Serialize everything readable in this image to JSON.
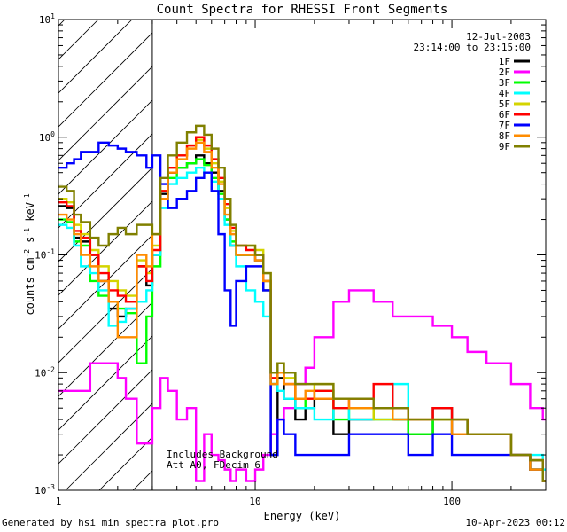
{
  "footer": {
    "left": "Generated by hsi_min_spectra_plot.pro",
    "right": "10-Apr-2023 00:12"
  },
  "colors": {
    "axis": "#000000",
    "hatch": "#000000",
    "background": "#ffffff"
  },
  "chart_data": {
    "type": "line",
    "title": "Count Spectra for RHESSI Front Segments",
    "xlabel": "Energy (keV)",
    "ylabel_parts": [
      "counts cm",
      "-2",
      " s",
      "-1",
      " keV",
      "-1"
    ],
    "xscale": "log",
    "yscale": "log",
    "xlim": [
      1,
      300
    ],
    "ylim": [
      0.001,
      10
    ],
    "x_ticks": [
      {
        "value": 1,
        "label": "1"
      },
      {
        "value": 10,
        "label": "10"
      },
      {
        "value": 100,
        "label": "100"
      }
    ],
    "y_ticks": [
      {
        "value": 0.001,
        "base": "10",
        "exp": "-3"
      },
      {
        "value": 0.01,
        "base": "10",
        "exp": "-2"
      },
      {
        "value": 0.1,
        "base": "10",
        "exp": "-1"
      },
      {
        "value": 1,
        "base": "10",
        "exp": "0"
      },
      {
        "value": 10,
        "base": "10",
        "exp": "1"
      }
    ],
    "hatched_region": {
      "x_from": 1,
      "x_to": 3
    },
    "date": "12-Jul-2003",
    "time_range": "23:14:00 to 23:15:00",
    "annotations": [
      "Includes Background",
      "Att A0, FDecim 6"
    ],
    "legend_position": "top-right",
    "series": [
      {
        "name": "1F",
        "color": "#000000",
        "x": [
          1.0,
          1.1,
          1.2,
          1.3,
          1.45,
          1.6,
          1.8,
          2.0,
          2.2,
          2.5,
          2.8,
          3.0,
          3.3,
          3.6,
          4.0,
          4.5,
          5.0,
          5.5,
          6.0,
          6.5,
          7.0,
          7.5,
          8.0,
          9.0,
          10.0,
          11.0,
          12.0,
          13.0,
          14.0,
          16.0,
          18.0,
          20.0,
          25.0,
          30.0,
          40.0,
          50.0,
          60.0,
          80.0,
          100.0,
          120.0,
          150.0,
          200.0,
          250.0,
          290.0
        ],
        "y": [
          0.26,
          0.25,
          0.14,
          0.13,
          0.1,
          0.06,
          0.035,
          0.03,
          0.035,
          0.08,
          0.055,
          0.1,
          0.33,
          0.5,
          0.55,
          0.6,
          0.7,
          0.6,
          0.5,
          0.35,
          0.2,
          0.12,
          0.1,
          0.1,
          0.09,
          0.05,
          0.002,
          0.009,
          0.006,
          0.004,
          0.005,
          0.006,
          0.003,
          0.004,
          0.005,
          0.004,
          0.003,
          0.005,
          0.003,
          0.003,
          0.003,
          0.002,
          0.0015,
          0.0012
        ]
      },
      {
        "name": "2F",
        "color": "#ff00ff",
        "x": [
          1.0,
          1.1,
          1.2,
          1.3,
          1.45,
          1.6,
          1.8,
          2.0,
          2.2,
          2.5,
          2.8,
          3.0,
          3.3,
          3.6,
          4.0,
          4.5,
          5.0,
          5.5,
          6.0,
          6.5,
          7.0,
          7.5,
          8.0,
          9.0,
          10.0,
          11.0,
          12.0,
          13.0,
          14.0,
          16.0,
          18.0,
          20.0,
          25.0,
          30.0,
          40.0,
          50.0,
          60.0,
          80.0,
          100.0,
          120.0,
          150.0,
          200.0,
          250.0,
          290.0
        ],
        "y": [
          0.007,
          0.007,
          0.007,
          0.007,
          0.012,
          0.012,
          0.012,
          0.009,
          0.006,
          0.0025,
          0.0025,
          0.005,
          0.009,
          0.007,
          0.004,
          0.005,
          0.0012,
          0.003,
          0.002,
          0.0018,
          0.0015,
          0.0012,
          0.0015,
          0.0012,
          0.0015,
          0.002,
          0.003,
          0.004,
          0.005,
          0.008,
          0.011,
          0.02,
          0.04,
          0.05,
          0.04,
          0.03,
          0.03,
          0.025,
          0.02,
          0.015,
          0.012,
          0.008,
          0.005,
          0.004
        ]
      },
      {
        "name": "3F",
        "color": "#00ff00",
        "x": [
          1.0,
          1.1,
          1.2,
          1.3,
          1.45,
          1.6,
          1.8,
          2.0,
          2.2,
          2.5,
          2.8,
          3.0,
          3.3,
          3.6,
          4.0,
          4.5,
          5.0,
          5.5,
          6.0,
          6.5,
          7.0,
          7.5,
          8.0,
          9.0,
          10.0,
          11.0,
          12.0,
          13.0,
          14.0,
          16.0,
          18.0,
          20.0,
          25.0,
          30.0,
          40.0,
          50.0,
          60.0,
          80.0,
          100.0,
          120.0,
          150.0,
          200.0,
          250.0,
          290.0
        ],
        "y": [
          0.2,
          0.19,
          0.13,
          0.12,
          0.06,
          0.045,
          0.04,
          0.035,
          0.032,
          0.012,
          0.03,
          0.08,
          0.3,
          0.45,
          0.55,
          0.6,
          0.65,
          0.58,
          0.45,
          0.33,
          0.2,
          0.13,
          0.1,
          0.1,
          0.1,
          0.06,
          0.008,
          0.01,
          0.01,
          0.005,
          0.006,
          0.007,
          0.004,
          0.005,
          0.004,
          0.004,
          0.003,
          0.004,
          0.004,
          0.003,
          0.003,
          0.002,
          0.0015,
          0.0012
        ]
      },
      {
        "name": "4F",
        "color": "#00ffff",
        "x": [
          1.0,
          1.1,
          1.2,
          1.3,
          1.45,
          1.6,
          1.8,
          2.0,
          2.2,
          2.5,
          2.8,
          3.0,
          3.3,
          3.6,
          4.0,
          4.5,
          5.0,
          5.5,
          6.0,
          6.5,
          7.0,
          7.5,
          8.0,
          9.0,
          10.0,
          11.0,
          12.0,
          13.0,
          14.0,
          16.0,
          18.0,
          20.0,
          25.0,
          30.0,
          40.0,
          50.0,
          60.0,
          80.0,
          100.0,
          120.0,
          150.0,
          200.0,
          250.0,
          290.0
        ],
        "y": [
          0.18,
          0.17,
          0.12,
          0.08,
          0.07,
          0.05,
          0.025,
          0.027,
          0.035,
          0.04,
          0.05,
          0.1,
          0.25,
          0.4,
          0.45,
          0.5,
          0.55,
          0.5,
          0.42,
          0.3,
          0.18,
          0.12,
          0.08,
          0.05,
          0.04,
          0.03,
          0.008,
          0.007,
          0.006,
          0.005,
          0.005,
          0.004,
          0.005,
          0.004,
          0.004,
          0.008,
          0.004,
          0.004,
          0.004,
          0.003,
          0.003,
          0.002,
          0.002,
          0.0015
        ]
      },
      {
        "name": "5F",
        "color": "#d4d400",
        "x": [
          1.0,
          1.1,
          1.2,
          1.3,
          1.45,
          1.6,
          1.8,
          2.0,
          2.2,
          2.5,
          2.8,
          3.0,
          3.3,
          3.6,
          4.0,
          4.5,
          5.0,
          5.5,
          6.0,
          6.5,
          7.0,
          7.5,
          8.0,
          9.0,
          10.0,
          11.0,
          12.0,
          13.0,
          14.0,
          16.0,
          18.0,
          20.0,
          25.0,
          30.0,
          40.0,
          50.0,
          60.0,
          80.0,
          100.0,
          120.0,
          150.0,
          200.0,
          250.0,
          290.0
        ],
        "y": [
          0.3,
          0.28,
          0.18,
          0.15,
          0.11,
          0.08,
          0.06,
          0.05,
          0.045,
          0.09,
          0.07,
          0.12,
          0.35,
          0.55,
          0.7,
          0.85,
          0.95,
          0.8,
          0.6,
          0.42,
          0.25,
          0.16,
          0.12,
          0.12,
          0.11,
          0.07,
          0.01,
          0.012,
          0.009,
          0.006,
          0.006,
          0.008,
          0.005,
          0.005,
          0.004,
          0.005,
          0.004,
          0.004,
          0.004,
          0.003,
          0.003,
          0.002,
          0.0018,
          0.0012
        ]
      },
      {
        "name": "6F",
        "color": "#ff0000",
        "x": [
          1.0,
          1.1,
          1.2,
          1.3,
          1.45,
          1.6,
          1.8,
          2.0,
          2.2,
          2.5,
          2.8,
          3.0,
          3.3,
          3.6,
          4.0,
          4.5,
          5.0,
          5.5,
          6.0,
          6.5,
          7.0,
          7.5,
          8.0,
          9.0,
          10.0,
          11.0,
          12.0,
          13.0,
          14.0,
          16.0,
          18.0,
          20.0,
          25.0,
          30.0,
          40.0,
          50.0,
          60.0,
          80.0,
          100.0,
          120.0,
          150.0,
          200.0,
          250.0,
          290.0
        ],
        "y": [
          0.28,
          0.26,
          0.16,
          0.14,
          0.1,
          0.07,
          0.05,
          0.045,
          0.04,
          0.08,
          0.06,
          0.11,
          0.35,
          0.55,
          0.7,
          0.85,
          1.0,
          0.85,
          0.65,
          0.45,
          0.27,
          0.17,
          0.12,
          0.11,
          0.1,
          0.06,
          0.009,
          0.01,
          0.008,
          0.006,
          0.006,
          0.007,
          0.005,
          0.006,
          0.008,
          0.005,
          0.004,
          0.005,
          0.004,
          0.003,
          0.003,
          0.002,
          0.0018,
          0.0012
        ]
      },
      {
        "name": "7F",
        "color": "#0000ff",
        "x": [
          1.0,
          1.1,
          1.2,
          1.3,
          1.45,
          1.6,
          1.8,
          2.0,
          2.2,
          2.5,
          2.8,
          3.0,
          3.3,
          3.6,
          4.0,
          4.5,
          5.0,
          5.5,
          6.0,
          6.5,
          7.0,
          7.5,
          8.0,
          9.0,
          10.0,
          11.0,
          12.0,
          13.0,
          14.0,
          16.0,
          18.0,
          20.0,
          25.0,
          30.0,
          40.0,
          50.0,
          60.0,
          80.0,
          100.0,
          120.0,
          150.0,
          200.0,
          250.0,
          290.0
        ],
        "y": [
          0.55,
          0.6,
          0.65,
          0.75,
          0.75,
          0.9,
          0.85,
          0.8,
          0.75,
          0.7,
          0.55,
          0.7,
          0.4,
          0.25,
          0.3,
          0.35,
          0.45,
          0.5,
          0.35,
          0.15,
          0.05,
          0.025,
          0.06,
          0.08,
          0.08,
          0.05,
          0.002,
          0.004,
          0.003,
          0.002,
          0.002,
          0.002,
          0.002,
          0.003,
          0.003,
          0.003,
          0.002,
          0.003,
          0.002,
          0.002,
          0.002,
          0.002,
          0.0015,
          0.0012
        ]
      },
      {
        "name": "8F",
        "color": "#ff8c00",
        "x": [
          1.0,
          1.1,
          1.2,
          1.3,
          1.45,
          1.6,
          1.8,
          2.0,
          2.2,
          2.5,
          2.8,
          3.0,
          3.3,
          3.6,
          4.0,
          4.5,
          5.0,
          5.5,
          6.0,
          6.5,
          7.0,
          7.5,
          8.0,
          9.0,
          10.0,
          11.0,
          12.0,
          13.0,
          14.0,
          16.0,
          18.0,
          20.0,
          25.0,
          30.0,
          40.0,
          50.0,
          60.0,
          80.0,
          100.0,
          120.0,
          150.0,
          200.0,
          250.0,
          290.0
        ],
        "y": [
          0.22,
          0.2,
          0.15,
          0.1,
          0.08,
          0.06,
          0.04,
          0.02,
          0.02,
          0.1,
          0.08,
          0.15,
          0.3,
          0.5,
          0.65,
          0.8,
          0.9,
          0.75,
          0.55,
          0.4,
          0.22,
          0.15,
          0.1,
          0.1,
          0.09,
          0.06,
          0.008,
          0.01,
          0.008,
          0.006,
          0.007,
          0.006,
          0.006,
          0.005,
          0.005,
          0.004,
          0.004,
          0.004,
          0.003,
          0.003,
          0.003,
          0.002,
          0.0015,
          0.0012
        ]
      },
      {
        "name": "9F",
        "color": "#808000",
        "x": [
          1.0,
          1.1,
          1.2,
          1.3,
          1.45,
          1.6,
          1.8,
          2.0,
          2.2,
          2.5,
          2.8,
          3.0,
          3.3,
          3.6,
          4.0,
          4.5,
          5.0,
          5.5,
          6.0,
          6.5,
          7.0,
          7.5,
          8.0,
          9.0,
          10.0,
          11.0,
          12.0,
          13.0,
          14.0,
          16.0,
          18.0,
          20.0,
          25.0,
          30.0,
          40.0,
          50.0,
          60.0,
          80.0,
          100.0,
          120.0,
          150.0,
          200.0,
          250.0,
          290.0
        ],
        "y": [
          0.38,
          0.35,
          0.22,
          0.19,
          0.14,
          0.12,
          0.15,
          0.17,
          0.15,
          0.18,
          0.18,
          0.15,
          0.45,
          0.7,
          0.9,
          1.1,
          1.25,
          1.05,
          0.8,
          0.55,
          0.3,
          0.18,
          0.12,
          0.12,
          0.1,
          0.07,
          0.01,
          0.012,
          0.01,
          0.008,
          0.008,
          0.008,
          0.006,
          0.006,
          0.005,
          0.005,
          0.004,
          0.004,
          0.004,
          0.003,
          0.003,
          0.002,
          0.0018,
          0.0012
        ]
      }
    ]
  }
}
